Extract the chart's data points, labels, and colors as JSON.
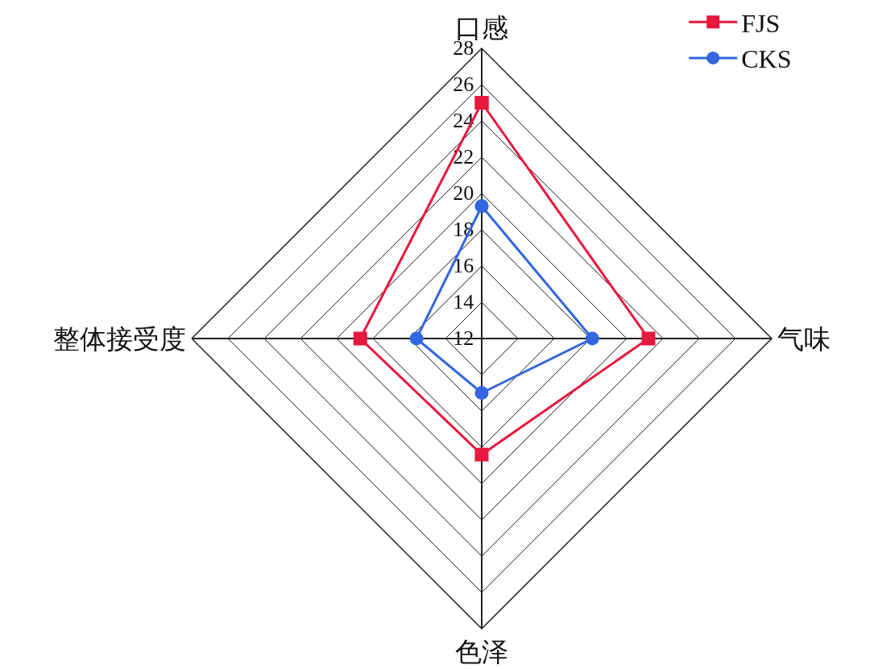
{
  "chart_data": {
    "type": "radar",
    "categories": [
      "口感",
      "气味",
      "色泽",
      "整体接受度"
    ],
    "series": [
      {
        "name": "FJS",
        "color": "#e8173c",
        "marker": "square",
        "values": [
          25.0,
          21.2,
          18.4,
          18.7
        ]
      },
      {
        "name": "CKS",
        "color": "#3366e0",
        "marker": "circle",
        "values": [
          19.3,
          18.1,
          15.0,
          15.6
        ]
      }
    ],
    "ylim": [
      12,
      28
    ],
    "yticks": [
      12,
      14,
      16,
      18,
      20,
      22,
      24,
      26,
      28
    ],
    "grid": true,
    "legend": "top right"
  }
}
